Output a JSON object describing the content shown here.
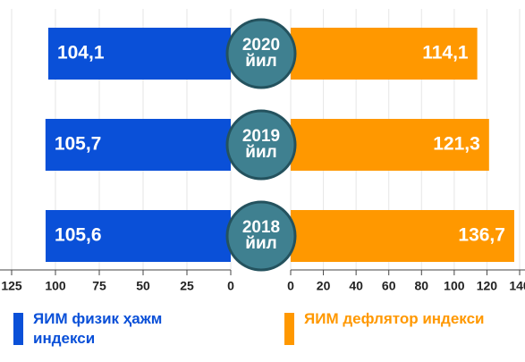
{
  "chart_data": {
    "type": "bar",
    "categories": [
      "2020 йил",
      "2019 йил",
      "2018 йил"
    ],
    "series": [
      {
        "name": "ЯИМ физик ҳажм индекси",
        "color": "#0a50d8",
        "values": [
          104.1,
          105.7,
          105.6
        ],
        "value_labels": [
          "104,1",
          "105,7",
          "105,6"
        ],
        "xlim": [
          0,
          125
        ],
        "xticks": [
          125,
          100,
          75,
          50,
          25,
          0
        ]
      },
      {
        "name": "ЯИМ дефлятор индекси",
        "color": "#ff9800",
        "values": [
          114.1,
          121.3,
          136.7
        ],
        "value_labels": [
          "114,1",
          "121,3",
          "136,7"
        ],
        "xlim": [
          0,
          140
        ],
        "xticks": [
          0,
          20,
          40,
          60,
          80,
          100,
          120,
          140
        ]
      }
    ],
    "grid": true
  }
}
